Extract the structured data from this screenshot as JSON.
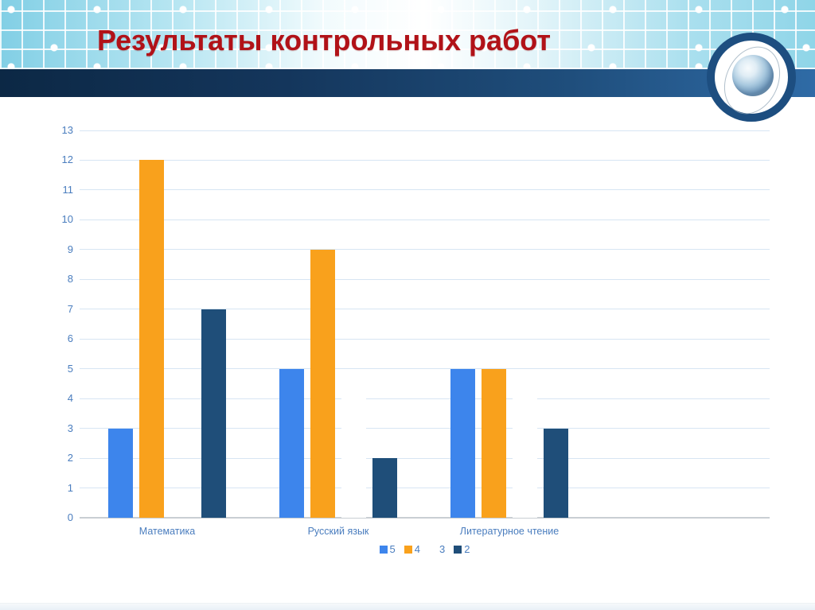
{
  "slide": {
    "title": "Результаты контрольных работ",
    "logo_icon": "globe-icon"
  },
  "chart_data": {
    "type": "bar",
    "title": "Результаты контрольных работ",
    "categories": [
      "Математика",
      "Русский язык",
      "Литературное чтение"
    ],
    "series": [
      {
        "name": "5",
        "color": "#3d85ec",
        "values": [
          3,
          5,
          5
        ]
      },
      {
        "name": "4",
        "color": "#f9a11c",
        "values": [
          12,
          9,
          5
        ]
      },
      {
        "name": "3",
        "color": "#ffffff",
        "values": [
          0,
          4,
          4
        ]
      },
      {
        "name": "2",
        "color": "#1f4e79",
        "values": [
          7,
          2,
          3
        ]
      }
    ],
    "xlabel": "",
    "ylabel": "",
    "ylim": [
      0,
      13
    ],
    "ytick_step": 1,
    "grid": true,
    "legend_position": "bottom",
    "gridline_color": "#d7e5f3",
    "axis_text_color": "#4a7dbe"
  },
  "theme": {
    "title_color": "#b11218",
    "navy_band_left": "#0c2845",
    "navy_band_right": "#2f6ba6",
    "header_blue": "#8fd5e8"
  }
}
